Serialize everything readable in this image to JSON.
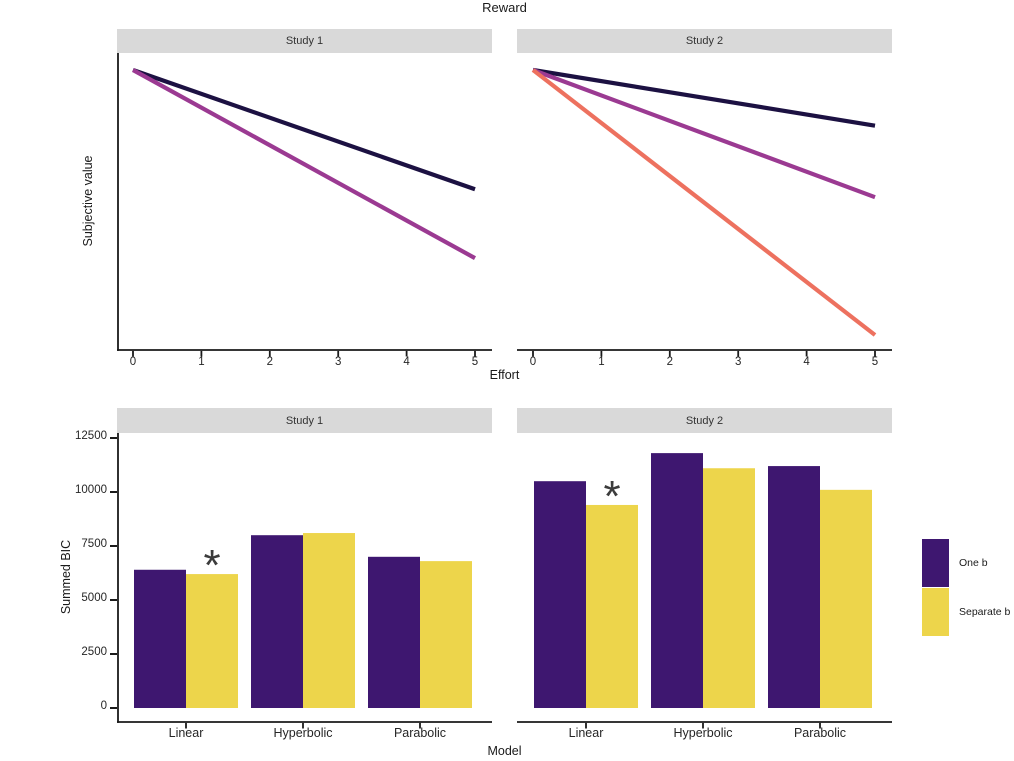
{
  "title": "Reward",
  "axes": {
    "top_x": "Effort",
    "top_y": "Subjective value",
    "bottom_x": "Model",
    "bottom_y": "Summed BIC"
  },
  "legend": {
    "items": [
      {
        "label": "One b",
        "color": "#3E1770"
      },
      {
        "label": "Separate b",
        "color": "#EDD54B"
      }
    ]
  },
  "colors": {
    "strip_bg": "#D9D9D9",
    "axis": "#1A1A1A",
    "annotation": "#3C3C3C"
  },
  "chart_data": [
    {
      "type": "line",
      "facet": "Study 1",
      "title": "Reward",
      "xlabel": "Effort",
      "ylabel": "Subjective value",
      "xlim": [
        0,
        5
      ],
      "ylim": [
        0,
        1
      ],
      "x_ticks": [
        "0",
        "1",
        "2",
        "3",
        "4",
        "5"
      ],
      "series": [
        {
          "color": "#1C1142",
          "x": [
            0,
            5
          ],
          "y": [
            1.0,
            0.55
          ]
        },
        {
          "color": "#9B3A92",
          "x": [
            0,
            5
          ],
          "y": [
            1.0,
            0.29
          ]
        }
      ]
    },
    {
      "type": "line",
      "facet": "Study 2",
      "title": "Reward",
      "xlabel": "Effort",
      "ylabel": "Subjective value",
      "xlim": [
        0,
        5
      ],
      "ylim": [
        0,
        1
      ],
      "x_ticks": [
        "0",
        "1",
        "2",
        "3",
        "4",
        "5"
      ],
      "series": [
        {
          "color": "#1C1142",
          "x": [
            0,
            5
          ],
          "y": [
            1.0,
            0.79
          ]
        },
        {
          "color": "#9B3A92",
          "x": [
            0,
            5
          ],
          "y": [
            1.0,
            0.52
          ]
        },
        {
          "color": "#ED715F",
          "x": [
            0,
            5
          ],
          "y": [
            1.0,
            0.0
          ]
        }
      ]
    },
    {
      "type": "bar",
      "facet": "Study 1",
      "xlabel": "Model",
      "ylabel": "Summed BIC",
      "categories": [
        "Linear",
        "Hyperbolic",
        "Parabolic"
      ],
      "y_ticks": [
        0,
        2500,
        5000,
        7500,
        10000,
        12500
      ],
      "ylim": [
        0,
        12500
      ],
      "series": [
        {
          "name": "One b",
          "color": "#3E1770",
          "values": [
            6400,
            8000,
            7000
          ]
        },
        {
          "name": "Separate b",
          "color": "#EDD54B",
          "values": [
            6200,
            8100,
            6800
          ]
        }
      ],
      "annotations": [
        {
          "text": "*",
          "category": "Linear",
          "series": "Separate b"
        }
      ]
    },
    {
      "type": "bar",
      "facet": "Study 2",
      "xlabel": "Model",
      "ylabel": "Summed BIC",
      "categories": [
        "Linear",
        "Hyperbolic",
        "Parabolic"
      ],
      "y_ticks": [
        0,
        2500,
        5000,
        7500,
        10000,
        12500
      ],
      "ylim": [
        0,
        12500
      ],
      "series": [
        {
          "name": "One b",
          "color": "#3E1770",
          "values": [
            10500,
            11800,
            11200
          ]
        },
        {
          "name": "Separate b",
          "color": "#EDD54B",
          "values": [
            9400,
            11100,
            10100
          ]
        }
      ],
      "annotations": [
        {
          "text": "*",
          "category": "Linear",
          "series": "Separate b"
        }
      ]
    }
  ]
}
